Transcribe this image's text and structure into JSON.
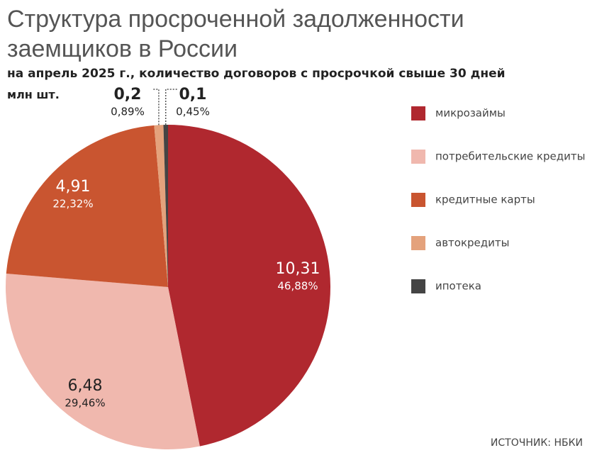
{
  "chart_data": {
    "type": "pie",
    "title": "Структура просроченной задолженности заемщиков в России",
    "subtitle": "на апрель 2025 г., количество договоров с просрочкой свыше 30 дней",
    "unit": "млн шт.",
    "source": "ИСТОЧНИК: НБКИ",
    "categories": [
      "микрозаймы",
      "потребительские кредиты",
      "кредитные карты",
      "автокредиты",
      "ипотека"
    ],
    "values": [
      10.31,
      6.48,
      4.91,
      0.2,
      0.1
    ],
    "value_labels": [
      "10,31",
      "6,48",
      "4,91",
      "0,2",
      "0,1"
    ],
    "percent_labels": [
      "46,88%",
      "29,46%",
      "22,32%",
      "0,89%",
      "0,45%"
    ],
    "colors": [
      "#b0282f",
      "#f0b8ae",
      "#c95530",
      "#e4a27c",
      "#444444"
    ],
    "legend": "right"
  }
}
